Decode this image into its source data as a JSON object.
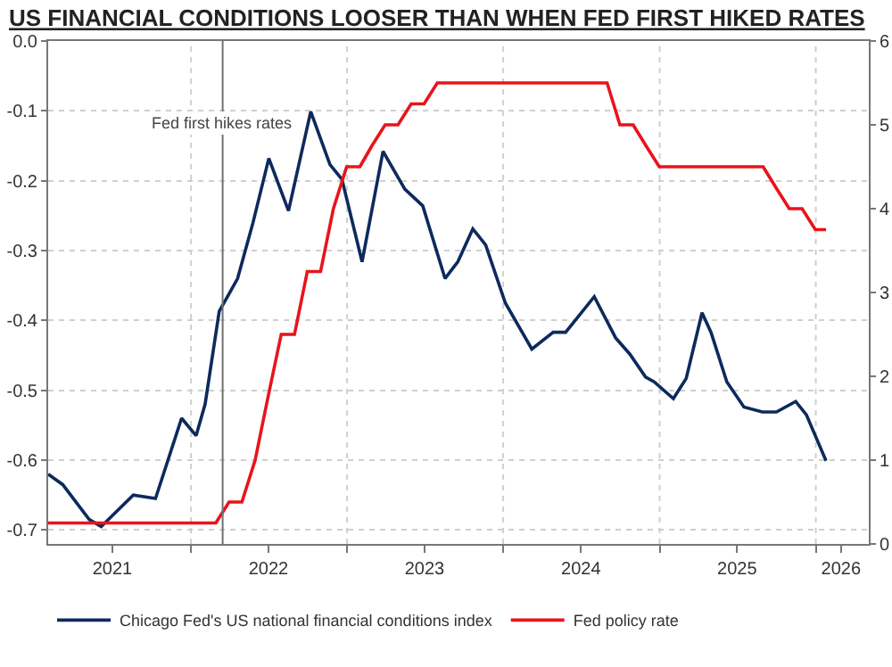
{
  "chart_data": {
    "type": "line",
    "title": "US FINANCIAL CONDITIONS LOOSER THAN WHEN FED FIRST HIKED RATES",
    "xlim": [
      "2021-02-01",
      "2026-05-05"
    ],
    "xticks": [
      {
        "value": "2021-07-01",
        "label": "2021"
      },
      {
        "value": "2022-01-01",
        "label": null
      },
      {
        "value": "2022-07-01",
        "label": "2022"
      },
      {
        "value": "2023-01-01",
        "label": null
      },
      {
        "value": "2023-07-01",
        "label": "2023"
      },
      {
        "value": "2024-01-01",
        "label": null
      },
      {
        "value": "2024-07-01",
        "label": "2024"
      },
      {
        "value": "2025-01-01",
        "label": null
      },
      {
        "value": "2025-07-01",
        "label": "2025"
      },
      {
        "value": "2026-01-01",
        "label": null
      },
      {
        "value": "2026-03-01",
        "label": "2026"
      }
    ],
    "ylim": [
      -0.72,
      0
    ],
    "yticks": [
      {
        "value": 0,
        "label": "0.0"
      },
      -0.1,
      -0.2,
      -0.3,
      -0.4,
      -0.5,
      -0.6,
      -0.7
    ],
    "y2lim": [
      0,
      6
    ],
    "y2ticks": [
      0,
      1,
      2,
      3,
      4,
      5,
      6
    ],
    "grid": true,
    "legend": "bottom",
    "line_style": "solid",
    "series": [
      {
        "name": "Chicago Fed's US national financial conditions index",
        "color": "#0d2a5c",
        "x": [
          "2021-02-01",
          "2021-03-07",
          "2021-05-08",
          "2021-06-05",
          "2021-08-19",
          "2021-10-10",
          "2021-12-10",
          "2022-01-13",
          "2022-02-03",
          "2022-03-08",
          "2022-04-20",
          "2022-05-26",
          "2022-07-02",
          "2022-08-17",
          "2022-10-08",
          "2022-11-22",
          "2022-12-20",
          "2023-02-05",
          "2023-03-26",
          "2023-05-16",
          "2023-06-27",
          "2023-08-18",
          "2023-09-17",
          "2023-10-22",
          "2023-11-21",
          "2024-01-06",
          "2024-03-08",
          "2024-04-27",
          "2024-05-26",
          "2024-08-01",
          "2024-09-20",
          "2024-10-23",
          "2024-11-29",
          "2024-12-19",
          "2025-02-02",
          "2025-03-04",
          "2025-04-10",
          "2025-05-01",
          "2025-06-07",
          "2025-07-17",
          "2025-08-29",
          "2025-10-01",
          "2025-11-15",
          "2025-12-10",
          "2026-01-25"
        ],
        "values": [
          -0.62,
          -0.635,
          -0.685,
          -0.695,
          -0.65,
          -0.655,
          -0.54,
          -0.565,
          -0.52,
          -0.387,
          -0.34,
          -0.26,
          -0.168,
          -0.243,
          -0.101,
          -0.177,
          -0.198,
          -0.316,
          -0.158,
          -0.212,
          -0.236,
          -0.34,
          -0.316,
          -0.269,
          -0.292,
          -0.375,
          -0.441,
          -0.417,
          -0.417,
          -0.366,
          -0.425,
          -0.448,
          -0.481,
          -0.488,
          -0.512,
          -0.483,
          -0.389,
          -0.417,
          -0.488,
          -0.524,
          -0.531,
          -0.531,
          -0.516,
          -0.535,
          -0.601
        ]
      },
      {
        "name": "Fed policy rate",
        "color": "#e8141b",
        "axis": "y2",
        "x": [
          "2021-02-01",
          "2022-02-28",
          "2022-03-31",
          "2022-04-30",
          "2022-05-31",
          "2022-06-30",
          "2022-07-31",
          "2022-08-31",
          "2022-09-30",
          "2022-10-31",
          "2022-11-30",
          "2022-12-31",
          "2023-01-31",
          "2023-02-28",
          "2023-03-31",
          "2023-04-30",
          "2023-05-31",
          "2023-06-30",
          "2023-07-31",
          "2024-08-31",
          "2024-09-30",
          "2024-10-31",
          "2024-11-30",
          "2024-12-31",
          "2025-08-31",
          "2025-09-30",
          "2025-10-31",
          "2025-11-30",
          "2025-12-31",
          "2026-01-25"
        ],
        "values": [
          0.25,
          0.25,
          0.5,
          0.5,
          1.0,
          1.75,
          2.5,
          2.5,
          3.25,
          3.25,
          4.0,
          4.5,
          4.5,
          4.75,
          5.0,
          5.0,
          5.25,
          5.25,
          5.5,
          5.5,
          5.0,
          5.0,
          4.75,
          4.5,
          4.5,
          4.25,
          4.0,
          4.0,
          3.75,
          3.75
        ]
      }
    ],
    "ref_lines": [
      {
        "axis": "x",
        "value": "2022-03-16",
        "label": "Fed first hikes rates",
        "color": "#707070"
      }
    ]
  }
}
